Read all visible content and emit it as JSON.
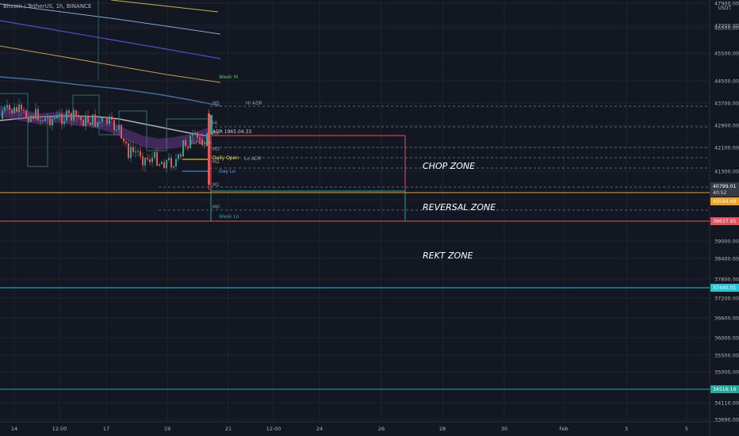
{
  "header": {
    "title": "Bitcoin / TetherUS, 1h, BINANCE",
    "currency": "USDT"
  },
  "zones": {
    "chop": "CHOP ZONE",
    "reversal": "REVERSAL ZONE",
    "rekt": "REKT ZONE"
  },
  "colors": {
    "background": "#131722",
    "grid": "#1f2331",
    "axis_text": "#b2b5be",
    "chop_box": "#e84f5b",
    "reversal_box": "#26a69a",
    "orange_line": "#f7a21b",
    "red_line": "#e84f5b",
    "cyan_line": "#26c6da",
    "green_line": "#26a69a"
  },
  "chart_data": {
    "type": "candlestick",
    "title": "Bitcoin / TetherUS, 1h, BINANCE",
    "y_axis": {
      "ticks": [
        47900,
        47000,
        46500,
        45500,
        44500,
        43700,
        42900,
        42100,
        41300,
        40000,
        39000,
        38400,
        37800,
        37200,
        36600,
        36000,
        35500,
        35000,
        34110,
        33690
      ],
      "range": [
        33500,
        47900
      ]
    },
    "x_axis": {
      "ticks": [
        "14",
        "12:00",
        "17",
        "19",
        "21",
        "12:00",
        "24",
        "26",
        "28",
        "30",
        "Feb",
        "3",
        "5"
      ]
    },
    "price_tags": [
      {
        "value": "40799.01",
        "sub": "40:52",
        "color": "#363a45"
      },
      {
        "value": "40594.68",
        "color": "#f7a21b"
      },
      {
        "value": "39637.95",
        "color": "#e84f5b"
      },
      {
        "value": "37440.01",
        "color": "#26c6da"
      },
      {
        "value": "34516.16",
        "color": "#26a69a"
      }
    ],
    "indicator_labels": [
      {
        "text": "Week Hi",
        "color": "#66bb6a"
      },
      {
        "text": "M5",
        "color": "#9598a1"
      },
      {
        "text": "R4",
        "color": "#9598a1"
      },
      {
        "text": "R3",
        "color": "#9598a1"
      },
      {
        "text": "M3",
        "color": "#9598a1"
      },
      {
        "text": "M2",
        "color": "#9598a1"
      },
      {
        "text": "M1",
        "color": "#9598a1"
      },
      {
        "text": "M0",
        "color": "#9598a1"
      },
      {
        "text": "Hi ADR",
        "color": "#9598a1"
      },
      {
        "text": "ADR 1965.04.33",
        "color": "#d1d4dc"
      },
      {
        "text": "EU Break",
        "color": "#9598a1"
      },
      {
        "text": "Daily Open",
        "color": "#ffeb3b"
      },
      {
        "text": "Lo ADR",
        "color": "#9598a1"
      },
      {
        "text": "Day Lo",
        "color": "#42a5f5"
      },
      {
        "text": "Week Lo",
        "color": "#26a69a"
      }
    ],
    "horizontal_levels": [
      {
        "name": "chop-top",
        "value": 42500
      },
      {
        "name": "orange",
        "value": 40594.68
      },
      {
        "name": "red",
        "value": 39637.95
      },
      {
        "name": "cyan",
        "value": 37440.01
      },
      {
        "name": "green",
        "value": 34516.16
      }
    ]
  }
}
